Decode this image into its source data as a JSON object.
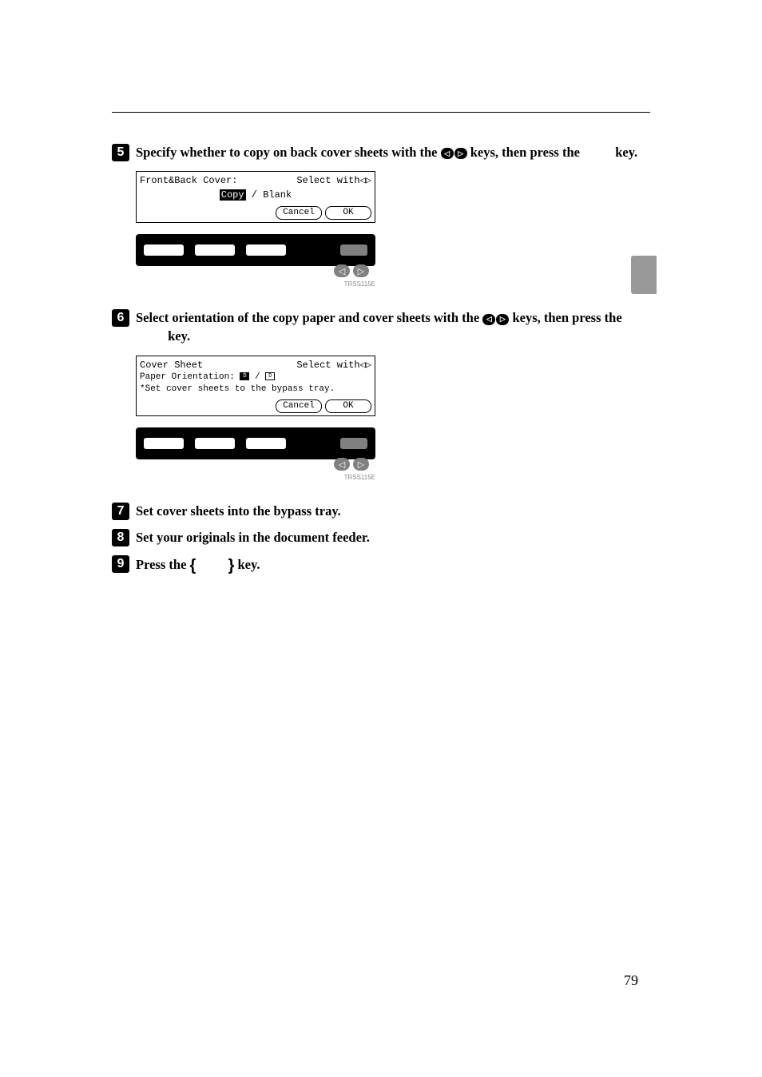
{
  "page_number": "79",
  "side_tab_color": "#999999",
  "steps": {
    "s5": {
      "num": "5",
      "text_before": "Specify whether to copy on back cover sheets with the ",
      "text_after": " keys, then press the ",
      "text_end": " key."
    },
    "s6": {
      "num": "6",
      "text_before": "Select orientation of the copy paper and cover sheets with the ",
      "text_after": " keys, then press the ",
      "text_end": " key."
    },
    "s7": {
      "num": "7",
      "text": "Set cover sheets into the bypass tray."
    },
    "s8": {
      "num": "8",
      "text": "Set your originals in the document feeder."
    },
    "s9": {
      "num": "9",
      "text_before": "Press the ",
      "text_after": " key."
    }
  },
  "lcd1": {
    "title": "Front&Back Cover:",
    "select_with": "Select with",
    "copy": "Copy",
    "sep": "/",
    "blank": "Blank",
    "cancel": "Cancel",
    "ok": "OK",
    "label": "TRSS115E"
  },
  "lcd2": {
    "title": "Cover Sheet",
    "select_with": "Select with",
    "orient_label": "Paper Orientation:",
    "orient_p": "D",
    "orient_sep": "/",
    "orient_l": "D",
    "hint": "*Set cover sheets to the bypass tray.",
    "cancel": "Cancel",
    "ok": "OK",
    "label": "TRSS115E"
  }
}
